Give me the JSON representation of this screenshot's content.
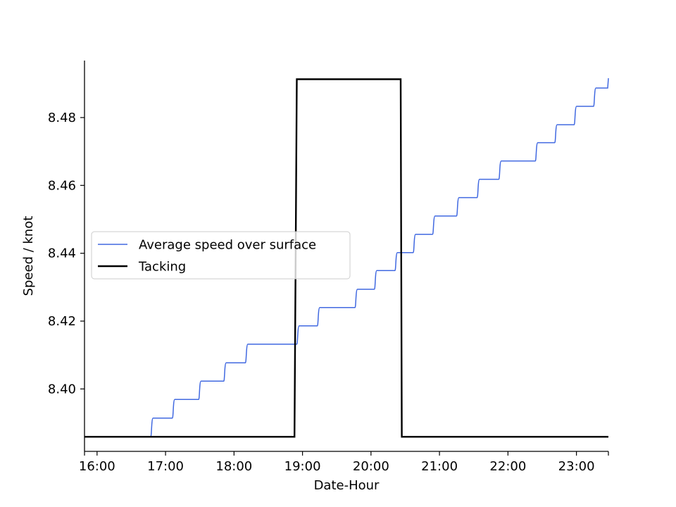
{
  "chart_data": {
    "type": "line",
    "xlabel": "Date-Hour",
    "ylabel": "Speed / knot",
    "x_ticks": [
      "16:00",
      "17:00",
      "18:00",
      "19:00",
      "20:00",
      "21:00",
      "22:00",
      "23:00"
    ],
    "x_tick_hours": [
      16,
      17,
      18,
      19,
      20,
      21,
      22,
      23
    ],
    "y_ticks": [
      "8.40",
      "8.42",
      "8.44",
      "8.46",
      "8.48"
    ],
    "y_tick_values": [
      8.4,
      8.42,
      8.44,
      8.46,
      8.48
    ],
    "xlim": [
      "15:49",
      "23:28"
    ],
    "ylim": [
      8.3816,
      8.4968
    ],
    "grid": false,
    "legend_position": "center-left",
    "series": [
      {
        "name": "Average speed over surface",
        "color": "#4169e1",
        "step_times": [
          "15:49",
          "16:47",
          "17:06",
          "17:29",
          "17:51",
          "18:10",
          "18:55",
          "19:13",
          "19:46",
          "20:03",
          "20:21",
          "20:37",
          "20:54",
          "21:15",
          "21:33",
          "21:52",
          "22:24",
          "22:41",
          "22:58",
          "23:15",
          "23:28"
        ],
        "step_values": [
          8.3859,
          8.3914,
          8.3969,
          8.4023,
          8.4077,
          8.4132,
          8.4186,
          8.424,
          8.4294,
          8.4349,
          8.4402,
          8.4456,
          8.451,
          8.4564,
          8.4618,
          8.4672,
          8.4726,
          8.4779,
          8.4833,
          8.4887,
          8.4916
        ]
      },
      {
        "name": "Tacking",
        "color": "#000000",
        "times": [
          "15:49",
          "18:53",
          "18:55",
          "20:26",
          "20:27",
          "23:28"
        ],
        "values": [
          8.3859,
          8.3859,
          8.4913,
          8.4913,
          8.3859,
          8.3859
        ]
      }
    ]
  }
}
